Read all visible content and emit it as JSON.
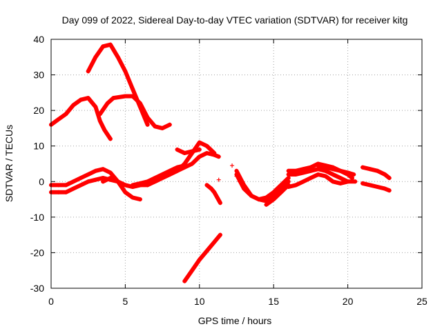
{
  "chart_data": {
    "type": "scatter",
    "title": "Day 099 of 2022, Sidereal Day-to-day VTEC variation (SDTVAR) for receiver kitg",
    "xlabel": "GPS time / hours",
    "ylabel": "SDTVAR / TECUs",
    "xlim": [
      0,
      25
    ],
    "ylim": [
      -30,
      40
    ],
    "x_ticks": [
      0,
      5,
      10,
      15,
      20,
      25
    ],
    "x_tick_labels": [
      "0",
      "5",
      "10",
      "15",
      "20",
      "25"
    ],
    "y_ticks": [
      -30,
      -20,
      -10,
      0,
      10,
      20,
      30,
      40
    ],
    "y_tick_labels": [
      "-30",
      "-20",
      "-10",
      "0",
      "10",
      "20",
      "30",
      "40"
    ],
    "grid": true,
    "marker": "+",
    "color": "#ff0000",
    "series": [
      {
        "name": "arc-1",
        "x": [
          2.5,
          3.0,
          3.5,
          4.0,
          4.5,
          5.0,
          5.5,
          6.0,
          6.5
        ],
        "y": [
          31,
          35,
          38,
          38.5,
          35,
          31,
          26,
          21,
          16
        ]
      },
      {
        "name": "arc-2",
        "x": [
          0.0,
          0.5,
          1.0,
          1.5,
          2.0,
          2.5,
          3.0,
          3.3,
          3.6,
          4.0
        ],
        "y": [
          16,
          17.5,
          19,
          21.5,
          23,
          23.5,
          21,
          17,
          14.5,
          12
        ]
      },
      {
        "name": "arc-3",
        "x": [
          3.3,
          3.8,
          4.2,
          5.0,
          5.5,
          6.0,
          6.5,
          7.0,
          7.5,
          8.0
        ],
        "y": [
          19,
          22,
          23.5,
          24,
          24,
          22,
          18,
          15.5,
          15,
          16
        ]
      },
      {
        "name": "arc-4",
        "x": [
          0.0,
          0.5,
          1.0,
          1.5,
          2.0,
          2.5,
          3.0,
          3.5,
          4.0,
          4.5,
          5.0,
          5.5,
          6.0
        ],
        "y": [
          -1,
          -1,
          -1,
          0,
          1,
          2,
          3,
          3.5,
          2.5,
          0,
          -3,
          -4.5,
          -5
        ]
      },
      {
        "name": "arc-5",
        "x": [
          0.0,
          0.5,
          1.0,
          1.5,
          2.0,
          2.5,
          3.0,
          3.5,
          4.0,
          4.5,
          5.0,
          5.5,
          6.0,
          6.5
        ],
        "y": [
          -3,
          -3,
          -3,
          -2,
          -1,
          0,
          0.5,
          1,
          0.5,
          0,
          -1,
          -1.5,
          -1,
          -0.5
        ]
      },
      {
        "name": "arc-6",
        "x": [
          3.5,
          4.0,
          4.5,
          5.0,
          5.5,
          6.0,
          6.5,
          7.0,
          7.5,
          8.0,
          8.5,
          9.0,
          9.5,
          10.0,
          10.5,
          11.0
        ],
        "y": [
          0,
          1,
          0,
          -1,
          -1.5,
          -1,
          -1,
          0,
          1,
          2,
          3,
          5,
          8,
          11,
          10,
          8
        ]
      },
      {
        "name": "arc-7",
        "x": [
          6.0,
          6.5,
          7.0,
          7.5,
          8.0,
          8.5,
          9.0,
          9.5,
          10.0,
          10.5,
          11.0,
          11.3
        ],
        "y": [
          -1,
          -0.5,
          0,
          1,
          2,
          3,
          4,
          5,
          7,
          8,
          7.5,
          7
        ]
      },
      {
        "name": "arc-8",
        "x": [
          5.5,
          6.0,
          6.5,
          7.0,
          7.5,
          8.0,
          8.5,
          9.0
        ],
        "y": [
          -1,
          -0.5,
          0,
          1,
          2,
          3,
          4,
          4.5
        ]
      },
      {
        "name": "arc-9",
        "x": [
          8.5,
          9.0,
          9.5,
          10.0
        ],
        "y": [
          9,
          8,
          8.5,
          9
        ]
      },
      {
        "name": "arc-10",
        "x": [
          9.0,
          9.5,
          10.0,
          10.5,
          11.0,
          11.4
        ],
        "y": [
          -28,
          -25,
          -22,
          -19.5,
          -17,
          -15
        ]
      },
      {
        "name": "arc-11",
        "x": [
          10.5,
          10.8,
          11.0,
          11.2,
          11.4
        ],
        "y": [
          -1,
          -2,
          -3,
          -4.5,
          -6
        ]
      },
      {
        "name": "arc-12",
        "x": [
          12.5,
          13.0,
          13.5,
          14.0,
          14.5,
          15.0,
          15.5,
          16.0
        ],
        "y": [
          3,
          -1,
          -4,
          -5,
          -5.5,
          -4,
          -2,
          0
        ]
      },
      {
        "name": "arc-13",
        "x": [
          12.5,
          13.0,
          13.5,
          14.0,
          14.5,
          15.0,
          15.5,
          16.0
        ],
        "y": [
          2,
          -2,
          -4,
          -5,
          -4.5,
          -3,
          -1,
          1
        ]
      },
      {
        "name": "arc-14",
        "x": [
          14.5,
          15.0,
          15.5,
          16.0
        ],
        "y": [
          -6.5,
          -5,
          -3,
          -1
        ]
      },
      {
        "name": "arc-15",
        "x": [
          16.0,
          16.5,
          17.0,
          17.5,
          18.0,
          18.5,
          19.0,
          19.5,
          20.0,
          20.3
        ],
        "y": [
          3,
          3,
          3.5,
          4,
          5,
          4.5,
          4,
          3,
          2,
          1
        ]
      },
      {
        "name": "arc-16",
        "x": [
          16.0,
          16.5,
          17.0,
          17.5,
          18.0,
          18.5,
          19.0,
          19.5,
          20.0,
          20.5
        ],
        "y": [
          2,
          2,
          2.5,
          3,
          3.5,
          3,
          2,
          1,
          0,
          0
        ]
      },
      {
        "name": "arc-17",
        "x": [
          16.0,
          16.5,
          17.0,
          17.5,
          18.0,
          18.5,
          19.0,
          19.5,
          20.0
        ],
        "y": [
          -1.5,
          -1,
          0,
          1,
          2,
          1.5,
          0,
          -0.5,
          0
        ]
      },
      {
        "name": "arc-18",
        "x": [
          18.0,
          18.5,
          19.0,
          19.5,
          20.0,
          20.4
        ],
        "y": [
          4.5,
          4,
          3.5,
          3,
          2.5,
          2
        ]
      },
      {
        "name": "arc-19",
        "x": [
          21.0,
          21.5,
          22.0,
          22.5,
          22.8
        ],
        "y": [
          4,
          3.5,
          3,
          2,
          1
        ]
      },
      {
        "name": "arc-20",
        "x": [
          21.0,
          21.5,
          22.0,
          22.5,
          22.8
        ],
        "y": [
          -0.5,
          -1,
          -1.5,
          -2,
          -2.5
        ]
      },
      {
        "name": "isolated-points",
        "x": [
          11.3,
          12.2,
          12.5,
          12.7
        ],
        "y": [
          0.5,
          4.5,
          1.5,
          0
        ]
      }
    ]
  }
}
